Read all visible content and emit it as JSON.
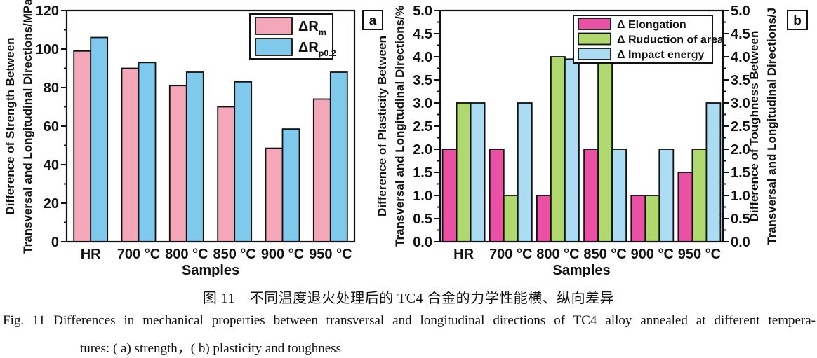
{
  "figure": {
    "caption_cn": "图 11　不同温度退火处理后的 TC4 合金的力学性能横、纵向差异",
    "caption_en_line1": "Fig. 11   Differences in mechanical properties between transversal and longitudinal directions of TC4 alloy annealed at different tempera-",
    "caption_en_line2": "tures: ( a)  strength，( b)  plasticity and toughness"
  },
  "chart_data": [
    {
      "type": "bar",
      "panel_label": "a",
      "categories": [
        "HR",
        "700 °C",
        "800 °C",
        "850 °C",
        "900 °C",
        "950 °C"
      ],
      "xlabel": "Samples",
      "ylabel_left_lines": [
        "Difference of Strength Between",
        "Transversal and Longitudinal Directions/MPa"
      ],
      "ylim": [
        0,
        120
      ],
      "ytick_step": 20,
      "yminor_step": 10,
      "ytick_decimals": 0,
      "grid": false,
      "legend_position": "top-right",
      "series": [
        {
          "label": "ΔR",
          "label_sub": "m",
          "color": "#F5A7BA",
          "values": [
            99,
            90,
            81,
            70,
            48.5,
            74
          ]
        },
        {
          "label": "ΔR",
          "label_sub": "p0.2",
          "color": "#7EC9EC",
          "values": [
            106,
            93,
            88,
            83,
            58.5,
            88
          ]
        }
      ]
    },
    {
      "type": "bar",
      "panel_label": "b",
      "categories": [
        "HR",
        "700 °C",
        "800 °C",
        "850 °C",
        "900 °C",
        "950 °C"
      ],
      "xlabel": "Samples",
      "ylabel_left_lines": [
        "Difference of Plasticity Between",
        "Transversal and Longitudinal Directions/%"
      ],
      "ylabel_right_lines": [
        "Difference of  Toughness Between",
        "Transversal and Longitudinal Directions/J"
      ],
      "ylim": [
        0,
        5.0
      ],
      "ytick_step": 0.5,
      "yminor_step": 0.25,
      "ytick_decimals": 1,
      "grid": false,
      "legend_position": "top-right",
      "series": [
        {
          "label": "Δ Elongation",
          "color": "#EA51A4",
          "values": [
            2.0,
            2.0,
            1.0,
            2.0,
            1.0,
            1.5
          ]
        },
        {
          "label": "Δ Ruduction of area",
          "color": "#AFD96E",
          "values": [
            3.0,
            1.0,
            4.0,
            4.0,
            1.0,
            2.0
          ]
        },
        {
          "label": "Δ Impact energy",
          "color": "#ABDCF2",
          "values": [
            3.0,
            3.0,
            3.95,
            2.0,
            2.0,
            3.0
          ]
        }
      ]
    }
  ]
}
